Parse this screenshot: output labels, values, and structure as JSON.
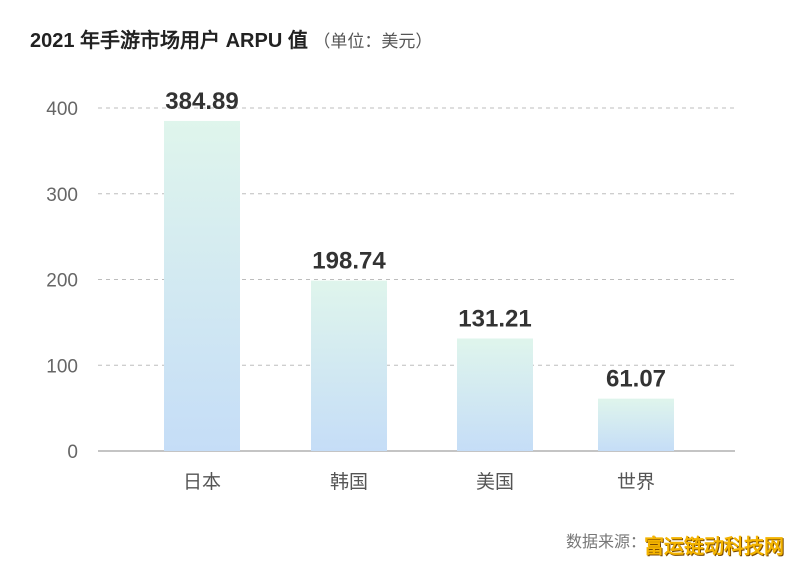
{
  "chart_data": {
    "type": "bar",
    "title": "2021 年手游市场用户 ARPU 值",
    "subtitle": "（单位：美元）",
    "categories": [
      "日本",
      "韩国",
      "美国",
      "世界"
    ],
    "values": [
      384.89,
      198.74,
      131.21,
      61.07
    ],
    "data_labels": [
      "384.89",
      "198.74",
      "131.21",
      "61.07"
    ],
    "ylim": [
      0,
      400
    ],
    "yticks": [
      "0",
      "100",
      "200",
      "300",
      "400"
    ],
    "grid": true,
    "bar_gradient": [
      "#dff5ec",
      "#c5ddf7"
    ]
  },
  "source": "数据来源：",
  "watermark": "富运链动科技网"
}
